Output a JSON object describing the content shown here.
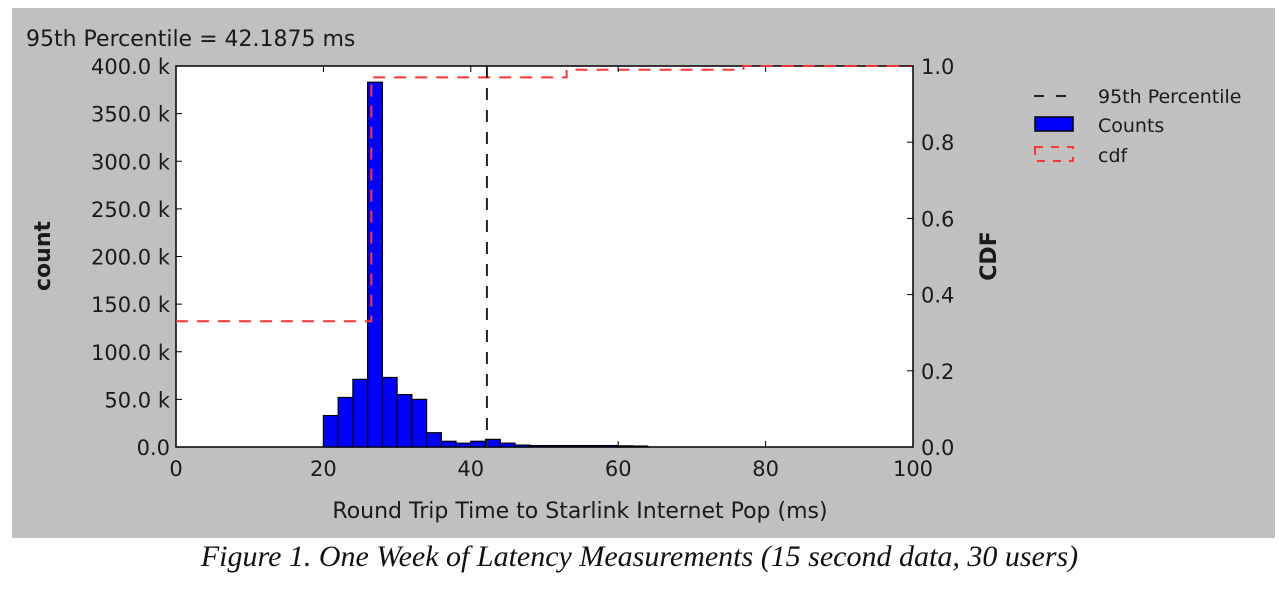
{
  "chart_data": {
    "type": "bar",
    "title": "95th Percentile =  42.1875 ms",
    "xlabel": "Round Trip Time to Starlink Internet Pop (ms)",
    "ylabel": "count",
    "ylabel_right": "CDF",
    "xlim": [
      0,
      100
    ],
    "ylim": [
      0,
      400000
    ],
    "ylim_right": [
      0,
      1.0
    ],
    "xticks": [
      "0",
      "20",
      "40",
      "60",
      "80",
      "100"
    ],
    "yticks": [
      "0.0",
      "50.0 k",
      "100.0 k",
      "150.0 k",
      "200.0 k",
      "250.0 k",
      "300.0 k",
      "350.0 k",
      "400.0 k"
    ],
    "yticks_right": [
      "0.0",
      "0.2",
      "0.4",
      "0.6",
      "0.8",
      "1.0"
    ],
    "bin_width": 2,
    "bins_start": [
      20,
      22,
      24,
      26,
      28,
      30,
      32,
      34,
      36,
      38,
      40,
      42,
      44,
      46,
      48,
      50,
      52,
      54,
      56,
      58,
      60,
      62
    ],
    "counts": [
      33000,
      52000,
      71000,
      383000,
      73000,
      55000,
      50000,
      15000,
      6000,
      4000,
      6000,
      8000,
      4000,
      2000,
      1500,
      1500,
      1500,
      1500,
      1500,
      1500,
      1200,
      1000
    ],
    "percentile_95": 42.1875,
    "cdf": {
      "x": [
        0,
        26.5,
        26.5,
        53,
        53,
        77,
        77,
        100
      ],
      "y": [
        0.33,
        0.33,
        0.97,
        0.97,
        0.99,
        0.99,
        1.0,
        1.0
      ]
    },
    "legend": {
      "placement": "right-outside",
      "entries": [
        "95th Percentile",
        "Counts",
        "cdf"
      ]
    },
    "colors": {
      "bars": "#0000ff",
      "cdf": "#ff3333",
      "percentile": "#222222",
      "background": "#c0c0c0"
    },
    "grid": false
  },
  "caption": "Figure 1.  One Week of Latency Measurements (15 second data, 30 users)"
}
